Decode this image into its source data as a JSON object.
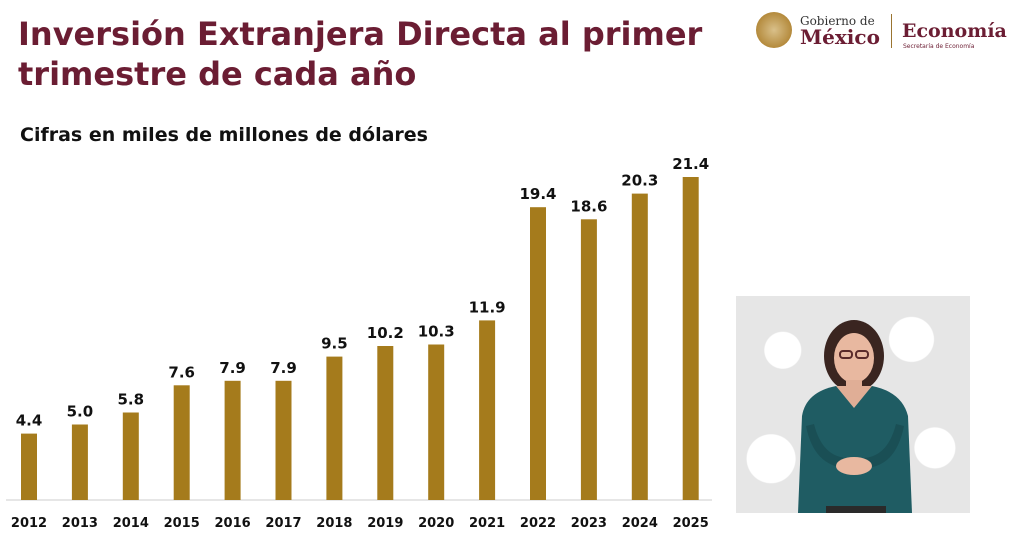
{
  "header": {
    "title": "Inversión Extranjera Directa al primer trimestre de cada año",
    "subtitle": "Cifras en miles de millones de dólares"
  },
  "logo": {
    "gobierno_small": "Gobierno de",
    "gobierno_big": "México",
    "economia_big": "Economía",
    "economia_small": "Secretaría de Economía"
  },
  "colors": {
    "bar": "#a57b1c",
    "title": "#6b1d33",
    "axis": "#cccccc"
  },
  "interpreter": {
    "icon": "sign-language-interpreter"
  },
  "chart_data": {
    "type": "bar",
    "title": "Inversión Extranjera Directa al primer trimestre de cada año",
    "subtitle": "Cifras en miles de millones de dólares",
    "categories": [
      "2012",
      "2013",
      "2014",
      "2015",
      "2016",
      "2017",
      "2018",
      "2019",
      "2020",
      "2021",
      "2022",
      "2023",
      "2024",
      "2025"
    ],
    "values": [
      4.4,
      5.0,
      5.8,
      7.6,
      7.9,
      7.9,
      9.5,
      10.2,
      10.3,
      11.9,
      19.4,
      18.6,
      20.3,
      21.4
    ],
    "labels": [
      "4.4",
      "5.0",
      "5.8",
      "7.6",
      "7.9",
      "7.9",
      "9.5",
      "10.2",
      "10.3",
      "11.9",
      "19.4",
      "18.6",
      "20.3",
      "21.4"
    ],
    "ylim": [
      0,
      21.4
    ],
    "grid": false,
    "legend": "none"
  }
}
